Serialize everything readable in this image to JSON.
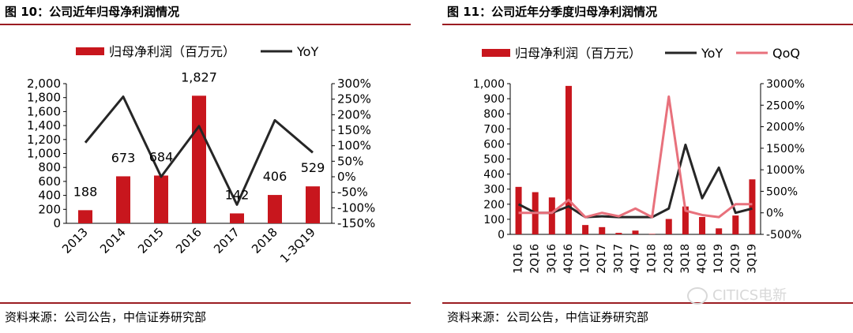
{
  "left": {
    "figure_title": "图 10：公司近年归母净利润情况",
    "source": "资料来源：公司公告，中信证券研究部"
  },
  "right": {
    "figure_title": "图 11：公司近年分季度归母净利润情况",
    "source": "资料来源：公司公告，中信证券研究部"
  },
  "watermark": "CITICS电新",
  "colors": {
    "bar": "#c8161d",
    "yoy": "#262626",
    "qoq": "#e8717c",
    "rule": "#9b1c22"
  },
  "chart_data": [
    {
      "type": "bar",
      "categories": [
        "2013",
        "2014",
        "2015",
        "2016",
        "2017",
        "2018",
        "1-3Q19"
      ],
      "series": [
        {
          "name": "归母净利润（百万元）",
          "type": "bar",
          "axis": "left",
          "values": [
            188,
            673,
            684,
            1827,
            142,
            406,
            529
          ],
          "data_labels": [
            "188",
            "673",
            "684",
            "1,827",
            "142",
            "406",
            "529"
          ]
        },
        {
          "name": "YoY",
          "type": "line",
          "axis": "right",
          "values": [
            110,
            258,
            0,
            163,
            -90,
            182,
            78
          ]
        }
      ],
      "y_left": {
        "min": 0,
        "max": 2000,
        "step": 200,
        "ticks": [
          "0",
          "200",
          "400",
          "600",
          "800",
          "1,000",
          "1,200",
          "1,400",
          "1,600",
          "1,800",
          "2,000"
        ]
      },
      "y_right": {
        "min": -150,
        "max": 300,
        "step": 50,
        "ticks": [
          "-150%",
          "-100%",
          "-50%",
          "0%",
          "50%",
          "100%",
          "150%",
          "200%",
          "250%",
          "300%"
        ]
      },
      "legend_position": "top",
      "grid": false
    },
    {
      "type": "bar",
      "categories": [
        "1Q16",
        "2Q16",
        "3Q16",
        "4Q16",
        "1Q17",
        "2Q17",
        "3Q17",
        "4Q17",
        "1Q18",
        "2Q18",
        "3Q18",
        "4Q18",
        "1Q19",
        "2Q19",
        "3Q19"
      ],
      "series": [
        {
          "name": "归母净利润（百万元）",
          "type": "bar",
          "axis": "left",
          "values": [
            315,
            280,
            245,
            985,
            62,
            48,
            10,
            25,
            3,
            102,
            185,
            115,
            40,
            125,
            365
          ]
        },
        {
          "name": "YoY",
          "type": "line",
          "axis": "right",
          "values": [
            200,
            0,
            0,
            150,
            -100,
            -80,
            -100,
            -100,
            -100,
            100,
            1580,
            340,
            1050,
            0,
            100
          ]
        },
        {
          "name": "QoQ",
          "type": "line",
          "axis": "right",
          "values": [
            0,
            0,
            0,
            300,
            -100,
            0,
            -80,
            100,
            -100,
            2700,
            50,
            -50,
            -100,
            200,
            200
          ]
        }
      ],
      "y_left": {
        "min": 0,
        "max": 1000,
        "step": 100,
        "ticks": [
          "0",
          "100",
          "200",
          "300",
          "400",
          "500",
          "600",
          "700",
          "800",
          "900",
          "1,000"
        ]
      },
      "y_right": {
        "min": -500,
        "max": 3000,
        "step": 500,
        "ticks": [
          "-500%",
          "0%",
          "500%",
          "1000%",
          "1500%",
          "2000%",
          "2500%",
          "3000%"
        ]
      },
      "legend_position": "top",
      "grid": false
    }
  ]
}
